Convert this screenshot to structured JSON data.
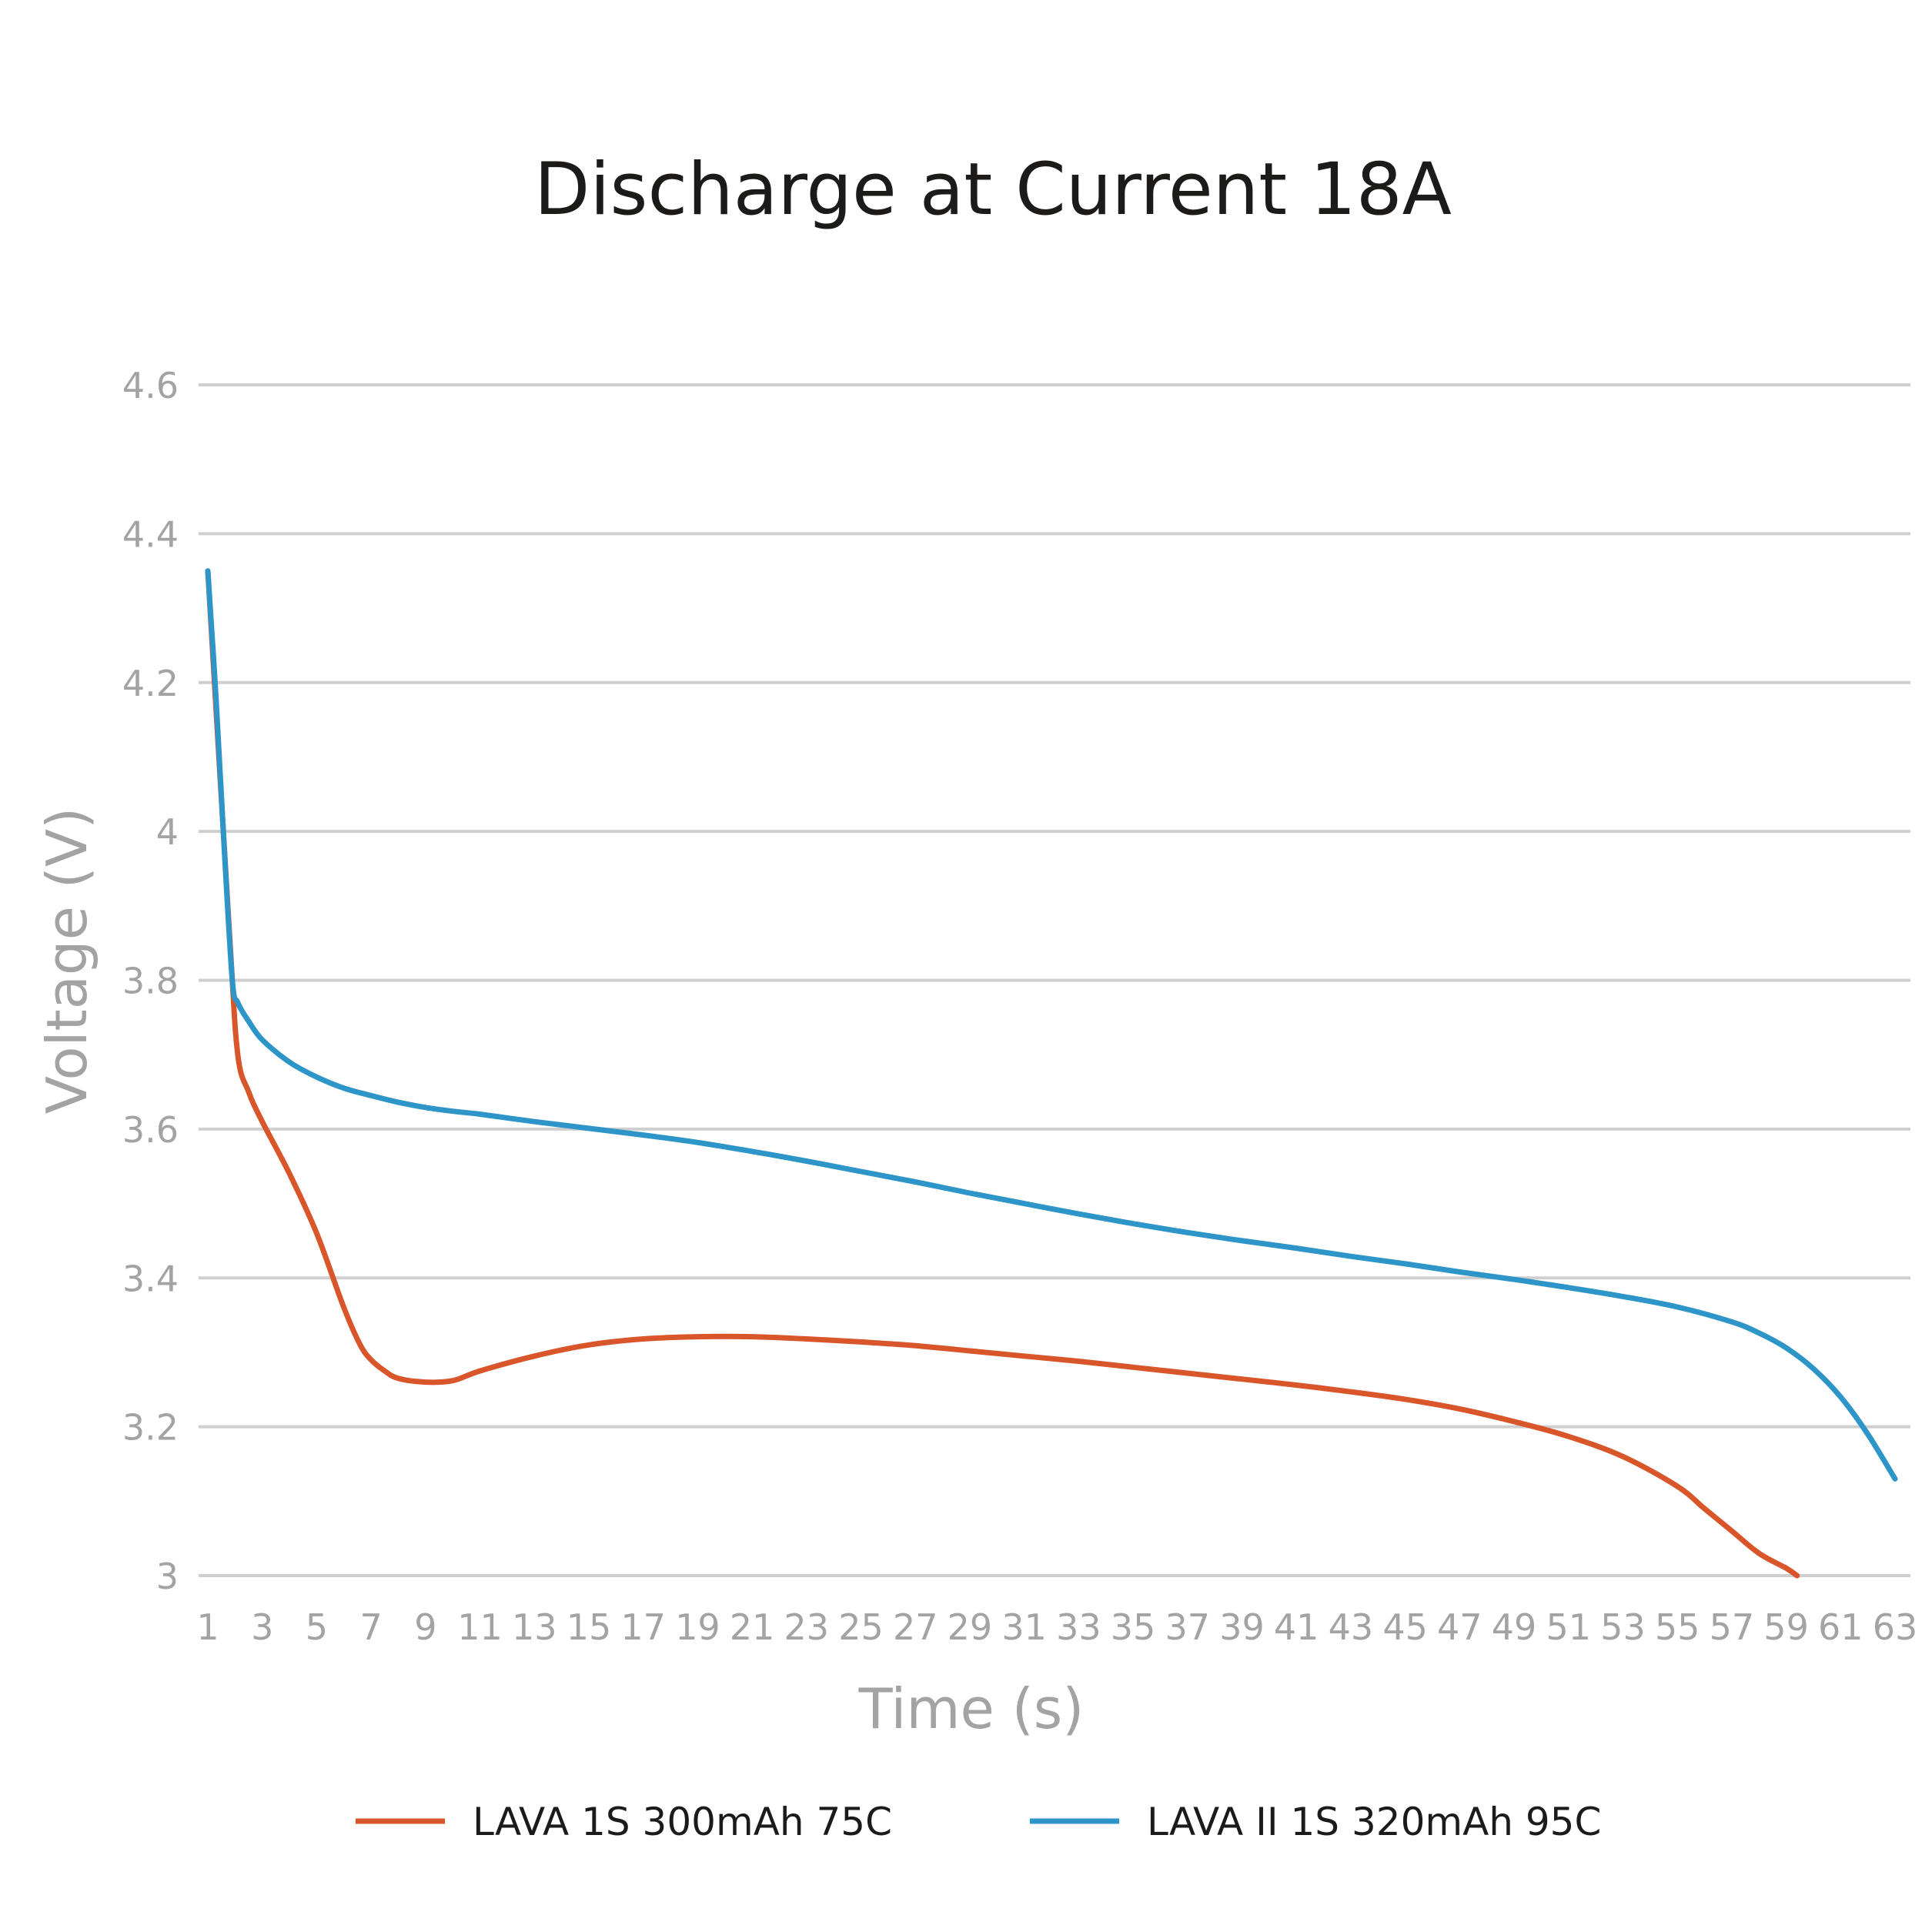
{
  "chart_data": {
    "type": "line",
    "title": "Discharge at Current 18A",
    "xlabel": "Time (s)",
    "ylabel": "Voltage (V)",
    "ylim": [
      3,
      4.6
    ],
    "xlim": [
      1,
      63
    ],
    "y_ticks": [
      "3",
      "3.2",
      "3.4",
      "3.6",
      "3.8",
      "4",
      "4.2",
      "4.4",
      "4.6"
    ],
    "x_ticks": [
      "1",
      "3",
      "5",
      "7",
      "9",
      "11",
      "13",
      "15",
      "17",
      "19",
      "21",
      "23",
      "25",
      "27",
      "29",
      "31",
      "33",
      "35",
      "37",
      "39",
      "41",
      "43",
      "45",
      "47",
      "49",
      "51",
      "53",
      "55",
      "57",
      "59",
      "61",
      "63"
    ],
    "grid": true,
    "legend_position": "bottom",
    "series": [
      {
        "name": "LAVA 1S 300mAh 75C",
        "color": "#d9552a",
        "x": [
          1,
          1.8,
          2.1,
          2.5,
          3,
          4,
          5,
          6,
          6.6,
          7,
          7.5,
          8,
          9,
          10,
          11,
          13,
          15,
          17,
          19,
          21,
          23,
          25,
          27,
          29,
          31,
          33,
          35,
          37,
          39,
          41,
          43,
          45,
          47,
          49,
          51,
          53,
          55,
          56,
          57,
          58,
          59,
          59.4
        ],
        "y": [
          4.35,
          3.86,
          3.7,
          3.65,
          3.61,
          3.54,
          3.46,
          3.36,
          3.31,
          3.29,
          3.275,
          3.265,
          3.26,
          3.262,
          3.275,
          3.295,
          3.31,
          3.318,
          3.321,
          3.321,
          3.318,
          3.314,
          3.309,
          3.302,
          3.295,
          3.288,
          3.28,
          3.272,
          3.264,
          3.256,
          3.247,
          3.237,
          3.224,
          3.207,
          3.187,
          3.16,
          3.12,
          3.09,
          3.06,
          3.03,
          3.01,
          3.0
        ]
      },
      {
        "name": "LAVA II 1S 320mAh 95C",
        "color": "#2e95c8",
        "x": [
          1,
          1.3,
          1.6,
          1.9,
          2.1,
          2.5,
          3,
          4,
          5,
          6,
          7,
          8,
          9,
          10,
          11,
          13,
          15,
          17,
          19,
          21,
          23,
          25,
          27,
          29,
          31,
          33,
          35,
          37,
          39,
          41,
          43,
          45,
          47,
          49,
          51,
          53,
          55,
          57,
          58,
          59,
          60,
          61,
          62,
          63
        ],
        "y": [
          4.35,
          4.18,
          3.98,
          3.8,
          3.77,
          3.745,
          3.72,
          3.69,
          3.67,
          3.655,
          3.645,
          3.636,
          3.629,
          3.624,
          3.62,
          3.61,
          3.601,
          3.592,
          3.582,
          3.57,
          3.557,
          3.543,
          3.529,
          3.514,
          3.5,
          3.486,
          3.473,
          3.461,
          3.45,
          3.44,
          3.429,
          3.419,
          3.408,
          3.398,
          3.387,
          3.375,
          3.361,
          3.341,
          3.326,
          3.306,
          3.278,
          3.24,
          3.19,
          3.13
        ]
      }
    ]
  }
}
